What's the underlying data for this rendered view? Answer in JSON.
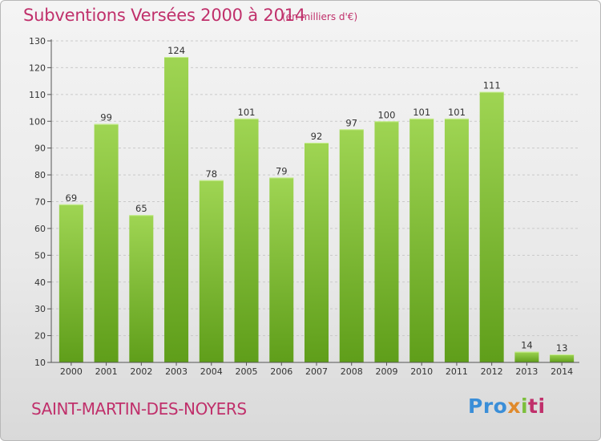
{
  "header": {
    "title": "Subventions Versées 2000 à 2014",
    "subtitle": "(en milliers d'€)"
  },
  "footer": {
    "commune": "SAINT-MARTIN-DES-NOYERS",
    "logo_parts": [
      "Pro",
      "x",
      "i",
      "ti"
    ]
  },
  "colors": {
    "accent": "#c0306b",
    "bar_top": "#9fd553",
    "bar_bottom": "#5f9e1a"
  },
  "chart_data": {
    "type": "bar",
    "title": "Subventions Versées 2000 à 2014",
    "subtitle": "(en milliers d'€)",
    "xlabel": "",
    "ylabel": "",
    "categories": [
      "2000",
      "2001",
      "2002",
      "2003",
      "2004",
      "2005",
      "2006",
      "2007",
      "2008",
      "2009",
      "2010",
      "2011",
      "2012",
      "2013",
      "2014"
    ],
    "values": [
      69,
      99,
      65,
      124,
      78,
      101,
      79,
      92,
      97,
      100,
      101,
      101,
      111,
      14,
      13
    ],
    "ylim": [
      10,
      130
    ],
    "yticks": [
      10,
      20,
      30,
      40,
      50,
      60,
      70,
      80,
      90,
      100,
      110,
      120,
      130
    ],
    "grid": true,
    "legend": "none"
  }
}
